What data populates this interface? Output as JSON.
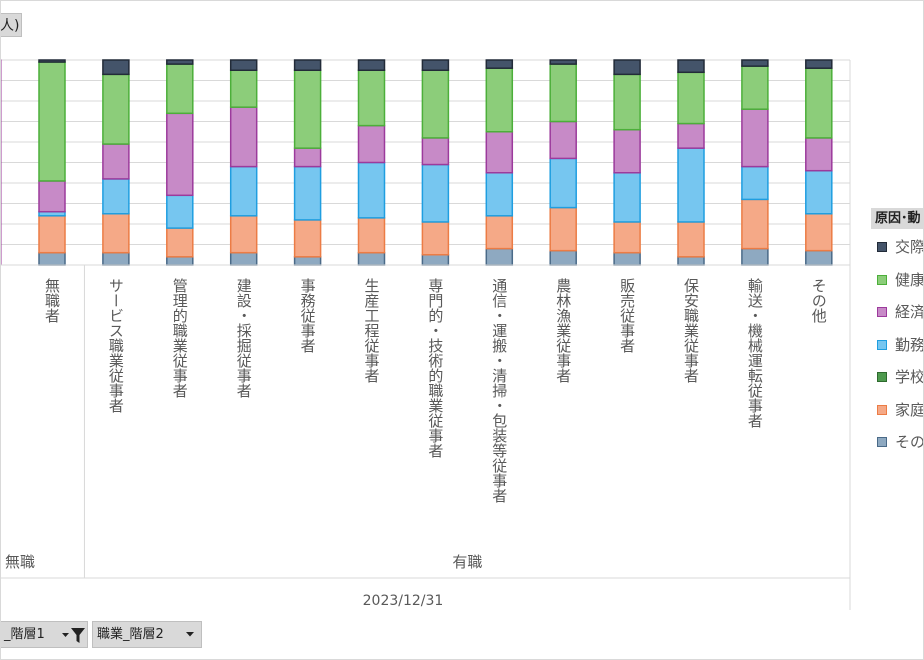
{
  "field_button_top": {
    "label": "人)"
  },
  "field_buttons": [
    {
      "label": "_階層1",
      "icons": [
        "dropdown-arrow-icon",
        "filter-funnel-icon"
      ]
    },
    {
      "label": "職業_階層2",
      "icons": [
        "dropdown-arrow-icon"
      ]
    }
  ],
  "legend": {
    "title": "原因･動",
    "items": [
      {
        "label": "交際",
        "color": "#44546a",
        "border": "#222b38"
      },
      {
        "label": "健康",
        "color": "#8ccd7a",
        "border": "#4caf3a"
      },
      {
        "label": "経済",
        "color": "#c78ac7",
        "border": "#9c3a9c"
      },
      {
        "label": "勤務",
        "color": "#76c6f0",
        "border": "#1f9ee0"
      },
      {
        "label": "学校",
        "color": "#4e9a4e",
        "border": "#2e6a2e"
      },
      {
        "label": "家庭",
        "color": "#f5a987",
        "border": "#ec7c45"
      },
      {
        "label": "その",
        "color": "#8ea9c1",
        "border": "#4a6a88"
      }
    ]
  },
  "chart_data": {
    "type": "bar",
    "stacked": true,
    "x_axis_title": "2023/12/31",
    "groups": [
      {
        "label": "無職",
        "categories": [
          "無職者"
        ]
      },
      {
        "label": "有職",
        "categories": [
          "サービス職業従事者",
          "管理的職業従事者",
          "建設・採掘従事者",
          "事務従事者",
          "生産工程従事者",
          "専門的・技術的職業従事者",
          "通信・運搬・清掃・包装等従事者",
          "農林漁業従事者",
          "販売従事者",
          "保安職業従事者",
          "輸送・機械運転従事者",
          "その他"
        ]
      }
    ],
    "categories": [
      "無職者",
      "サービス職業従事者",
      "管理的職業従事者",
      "建設・採掘従事者",
      "事務従事者",
      "生産工程従事者",
      "専門的・技術的職業従事者",
      "通信・運搬・清掃・包装等従事者",
      "農林漁業従事者",
      "販売従事者",
      "保安職業従事者",
      "輸送・機械運転従事者",
      "その他"
    ],
    "ylim": [
      0,
      100
    ],
    "series": [
      {
        "name": "その",
        "color": "#8ea9c1",
        "border": "#4a6a88",
        "values": [
          6,
          6,
          4,
          6,
          4,
          6,
          5,
          8,
          7,
          6,
          4,
          8,
          7
        ]
      },
      {
        "name": "家庭",
        "color": "#f5a987",
        "border": "#ec7c45",
        "values": [
          18,
          19,
          14,
          18,
          18,
          17,
          16,
          16,
          21,
          15,
          17,
          24,
          18
        ]
      },
      {
        "name": "学校",
        "color": "#4e9a4e",
        "border": "#2e6a2e",
        "values": [
          0,
          0,
          0,
          0,
          0,
          0,
          0,
          0,
          0,
          0,
          0,
          0,
          0
        ]
      },
      {
        "name": "勤務",
        "color": "#76c6f0",
        "border": "#1f9ee0",
        "values": [
          2,
          17,
          16,
          24,
          26,
          27,
          28,
          21,
          24,
          24,
          36,
          16,
          21
        ]
      },
      {
        "name": "経済",
        "color": "#c78ac7",
        "border": "#9c3a9c",
        "values": [
          15,
          17,
          40,
          29,
          9,
          18,
          13,
          20,
          18,
          21,
          12,
          28,
          16
        ]
      },
      {
        "name": "健康",
        "color": "#8ccd7a",
        "border": "#4caf3a",
        "values": [
          58,
          34,
          24,
          18,
          38,
          27,
          33,
          31,
          28,
          27,
          25,
          21,
          34
        ]
      },
      {
        "name": "交際",
        "color": "#44546a",
        "border": "#222b38",
        "values": [
          1,
          7,
          2,
          5,
          5,
          5,
          5,
          4,
          2,
          7,
          6,
          3,
          4
        ]
      }
    ],
    "legend_position": "right",
    "grid": true
  }
}
